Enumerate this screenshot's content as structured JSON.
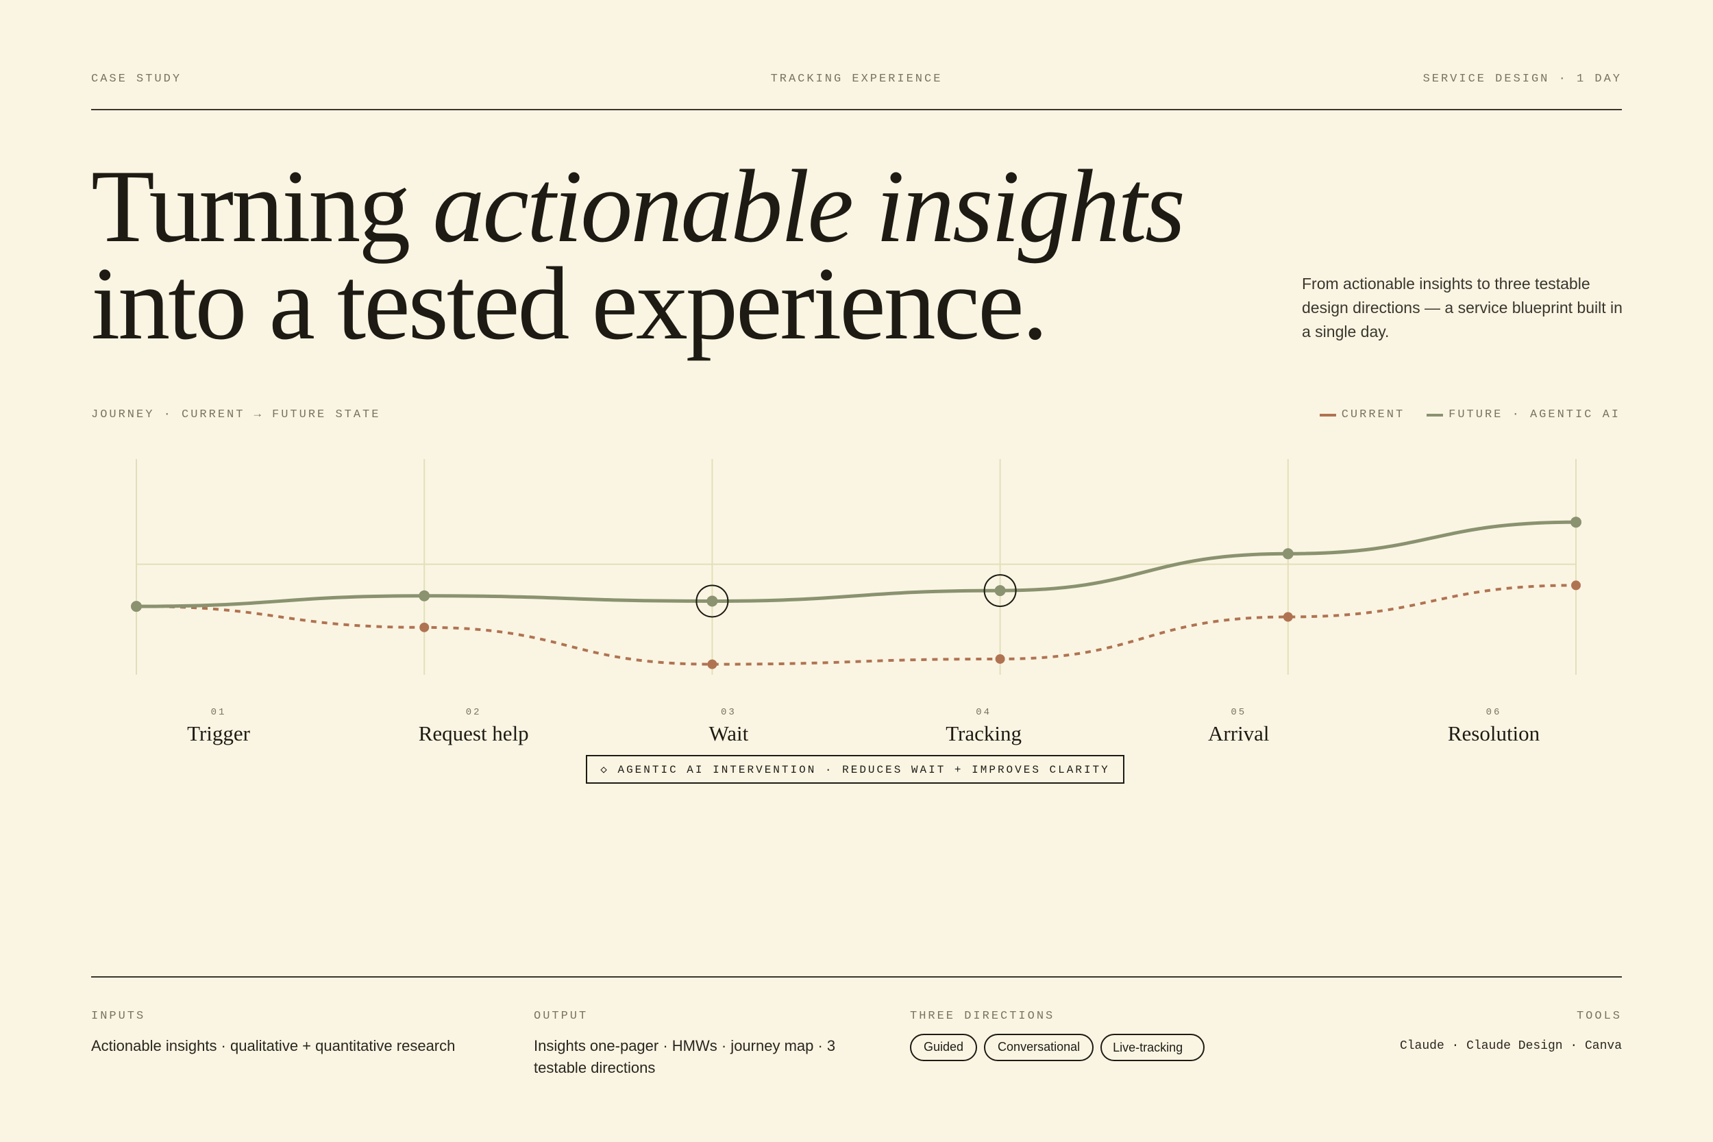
{
  "header": {
    "left": "CASE STUDY",
    "center": "TRACKING EXPERIENCE",
    "right": "SERVICE DESIGN · 1 DAY"
  },
  "headline": {
    "part1": "Turning ",
    "part1_italic": "actionable insights",
    "part2": "into a tested experience."
  },
  "lede": "From actionable insights to three testable design directions — a service blueprint built in a single day.",
  "chart_section": {
    "label": "JOURNEY · CURRENT → FUTURE STATE",
    "legend": [
      {
        "label": "CURRENT",
        "color": "#b07352"
      },
      {
        "label": "FUTURE · AGENTIC AI",
        "color": "#8a9270"
      }
    ],
    "callout": "◇ AGENTIC AI INTERVENTION · REDUCES WAIT + IMPROVES CLARITY"
  },
  "chart_data": {
    "type": "line",
    "categories": [
      "Trigger",
      "Request help",
      "Wait",
      "Tracking",
      "Arrival",
      "Resolution"
    ],
    "step_numbers": [
      "01",
      "02",
      "03",
      "04",
      "05",
      "06"
    ],
    "series": [
      {
        "name": "CURRENT",
        "values": [
          0,
          -2,
          -5.5,
          -5,
          -1,
          2
        ],
        "color": "#b07352",
        "style": "dashed"
      },
      {
        "name": "FUTURE · AGENTIC AI",
        "values": [
          0,
          1,
          0.5,
          1.5,
          5,
          8
        ],
        "color": "#8a9270",
        "style": "solid"
      }
    ],
    "highlighted_steps": [
      "Wait",
      "Tracking"
    ],
    "ylim": [
      -6.5,
      14
    ],
    "reference_line": 4,
    "grid": true
  },
  "footer": {
    "inputs": {
      "heading": "INPUTS",
      "text": "Actionable insights · qualitative + quantitative research"
    },
    "output": {
      "heading": "OUTPUT",
      "text": "Insights one-pager · HMWs · journey map · 3 testable directions"
    },
    "directions": {
      "heading": "THREE DIRECTIONS",
      "items": [
        "Guided",
        "Conversational",
        "Live-tracking"
      ]
    },
    "tools": {
      "heading": "TOOLS",
      "text": "Claude · Claude Design · Canva"
    }
  }
}
